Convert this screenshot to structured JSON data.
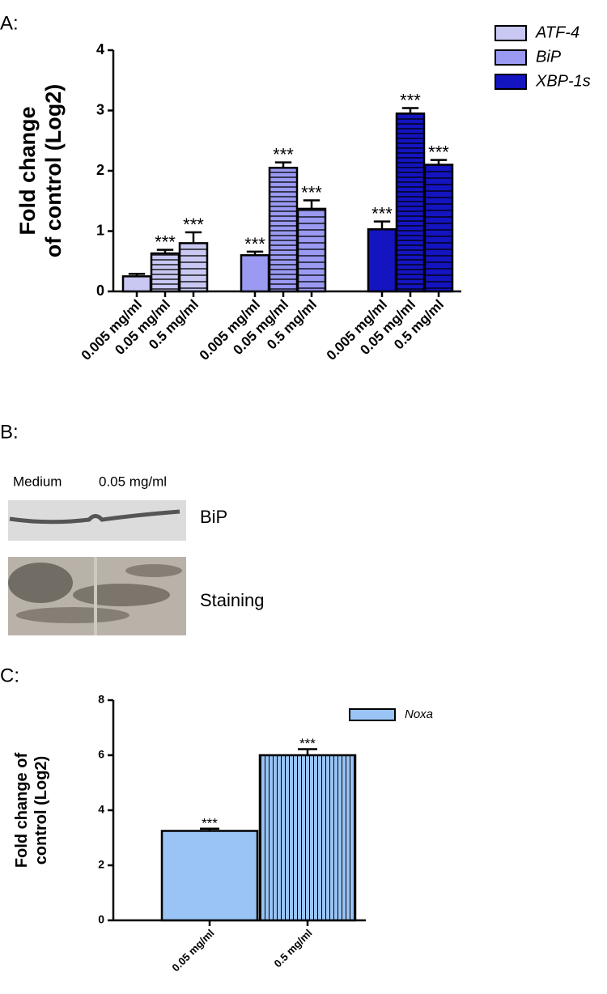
{
  "panels": {
    "a": "A:",
    "b": "B:",
    "c": "C:"
  },
  "blot": {
    "lanes": [
      "Medium",
      "0.05 mg/ml"
    ],
    "rows": [
      "BiP",
      "Staining"
    ]
  },
  "chart_data": [
    {
      "type": "bar",
      "ylabel": [
        "Fold change",
        "of control (Log2)"
      ],
      "categories": [
        "0.005 mg/ml",
        "0.05 mg/ml",
        "0.5 mg/ml"
      ],
      "patterns": [
        "solid",
        "hlines",
        "hlines"
      ],
      "series": [
        {
          "name": "ATF-4",
          "color": "#c8c8f2",
          "values": [
            0.25,
            0.63,
            0.8
          ],
          "errors": [
            0.04,
            0.06,
            0.18
          ],
          "significance": [
            null,
            "***",
            "***"
          ]
        },
        {
          "name": "BiP",
          "color": "#9a9af2",
          "values": [
            0.6,
            2.05,
            1.37
          ],
          "errors": [
            0.06,
            0.09,
            0.14
          ],
          "significance": [
            "***",
            "***",
            "***"
          ]
        },
        {
          "name": "XBP-1s",
          "color": "#1414c0",
          "values": [
            1.03,
            2.95,
            2.1
          ],
          "errors": [
            0.13,
            0.09,
            0.08
          ],
          "significance": [
            "***",
            "***",
            "***"
          ]
        }
      ],
      "ylim": [
        0,
        4
      ],
      "yticks": [
        0,
        1,
        2,
        3,
        4
      ],
      "legend": "top-right"
    },
    {
      "type": "bar",
      "ylabel": [
        "Fold change of",
        "control (Log2)"
      ],
      "categories": [
        "0.05 mg/ml",
        "0.5 mg/ml"
      ],
      "patterns": [
        "solid",
        "vlines"
      ],
      "series": [
        {
          "name": "Noxa",
          "color": "#99c4f5",
          "values": [
            3.25,
            6.0
          ],
          "errors": [
            0.08,
            0.22
          ],
          "significance": [
            "***",
            "***"
          ]
        }
      ],
      "ylim": [
        0,
        8
      ],
      "yticks": [
        0,
        2,
        4,
        6,
        8
      ],
      "legend": "top-right"
    }
  ]
}
